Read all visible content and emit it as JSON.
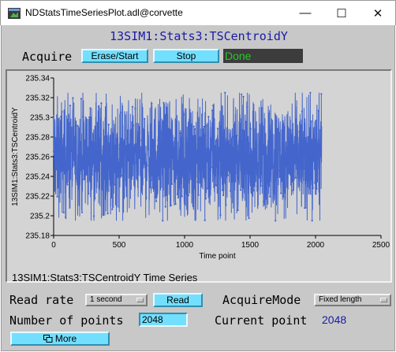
{
  "window": {
    "title": "NDStatsTimeSeriesPlot.adl@corvette",
    "minimize_glyph": "—",
    "maximize_glyph": "☐",
    "close_glyph": "✕"
  },
  "pv_title": "13SIM1:Stats3:TSCentroidY",
  "acquire": {
    "label": "Acquire",
    "erase_start_label": "Erase/Start",
    "stop_label": "Stop",
    "status": "Done"
  },
  "plot": {
    "caption": "13SIM1:Stats3:TSCentroidY Time Series"
  },
  "controls": {
    "read_rate_label": "Read rate",
    "read_rate_value": "1 second",
    "read_button_label": "Read",
    "acquire_mode_label": "AcquireMode",
    "acquire_mode_value": "Fixed length",
    "num_points_label": "Number of points",
    "num_points_value": "2048",
    "current_point_label": "Current point",
    "current_point_value": "2048",
    "more_label": "More"
  },
  "colors": {
    "background": "#c8c8c8",
    "button_bg": "#73dfff",
    "title_blue": "#1a1aa6",
    "status_bg": "#3c3c3c",
    "status_text": "#28c828",
    "series": "#4466cc"
  },
  "chart_data": {
    "type": "line",
    "xlabel": "Time point",
    "ylabel": "13SIM1:Stats3:TSCentroidY",
    "xlim": [
      0,
      2500
    ],
    "ylim": [
      235.18,
      235.34
    ],
    "x_ticks": [
      "0",
      "500",
      "1000",
      "1500",
      "2000",
      "2500"
    ],
    "y_ticks": [
      "235.18",
      "235.2",
      "235.22",
      "235.24",
      "235.26",
      "235.28",
      "235.3",
      "235.32",
      "235.34"
    ],
    "grid": false,
    "series": [
      {
        "count": 2048,
        "mean": 235.26,
        "band_low": 235.22,
        "band_high": 235.3,
        "min": 235.195,
        "max": 235.325
      }
    ]
  }
}
